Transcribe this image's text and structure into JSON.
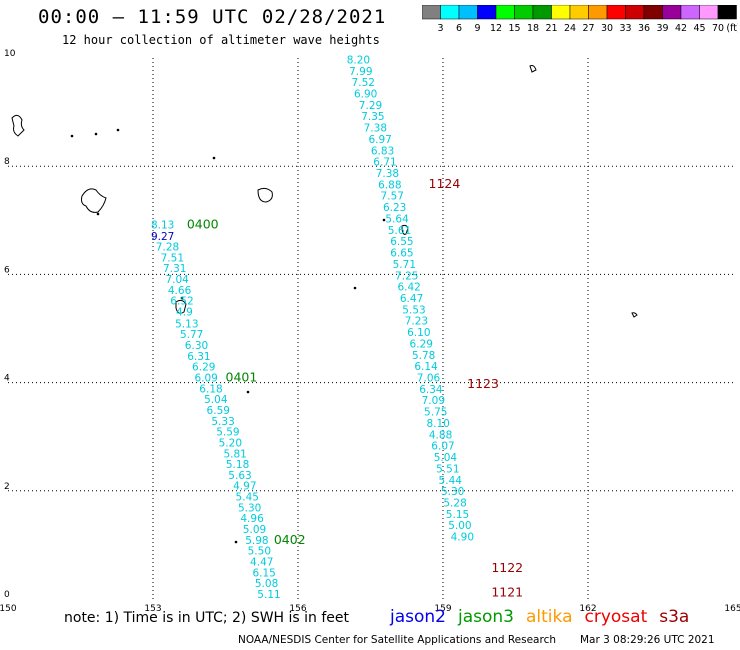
{
  "title": "00:00 – 11:59 UTC 02/28/2021",
  "subtitle": "12 hour collection of altimeter wave heights",
  "colorbar": {
    "colors": [
      "#808080",
      "#00ffff",
      "#00bfff",
      "#0000ff",
      "#00ff00",
      "#00cc00",
      "#009900",
      "#ffff00",
      "#ffcc00",
      "#ff9900",
      "#ff0000",
      "#cc0000",
      "#800000",
      "#990099",
      "#cc66ff",
      "#ff99ff",
      "#000000"
    ],
    "labels": [
      "3",
      "6",
      "9",
      "12",
      "15",
      "18",
      "21",
      "24",
      "27",
      "30",
      "33",
      "36",
      "39",
      "42",
      "45",
      "70"
    ],
    "unit": "(ft)"
  },
  "axes": {
    "x_ticks": [
      "150",
      "153",
      "156",
      "159",
      "162",
      "165"
    ],
    "y_ticks": [
      "0",
      "2",
      "4",
      "6",
      "8",
      "10"
    ]
  },
  "tracks": [
    {
      "color": "#00ccdd",
      "points": [
        {
          "lon": 153.2,
          "lat": 6.85,
          "v": "8.13"
        },
        {
          "lon": 153.2,
          "lat": 6.64,
          "v": "9.27",
          "color": "#0000cc"
        },
        {
          "lon": 153.3,
          "lat": 6.44,
          "v": "7.28"
        },
        {
          "lon": 153.4,
          "lat": 6.24,
          "v": "7.51"
        },
        {
          "lon": 153.45,
          "lat": 6.04,
          "v": "7.31"
        },
        {
          "lon": 153.5,
          "lat": 5.84,
          "v": "7.04"
        },
        {
          "lon": 153.55,
          "lat": 5.64,
          "v": "4.66"
        },
        {
          "lon": 153.6,
          "lat": 5.44,
          "v": "6.52"
        },
        {
          "lon": 153.65,
          "lat": 5.24,
          "v": "4.9"
        },
        {
          "lon": 153.7,
          "lat": 5.02,
          "v": "5.13"
        },
        {
          "lon": 153.8,
          "lat": 4.82,
          "v": "5.77"
        },
        {
          "lon": 153.9,
          "lat": 4.62,
          "v": "6.30"
        },
        {
          "lon": 153.95,
          "lat": 4.42,
          "v": "6.31"
        },
        {
          "lon": 154.05,
          "lat": 4.22,
          "v": "6.29"
        },
        {
          "lon": 154.1,
          "lat": 4.02,
          "v": "6.09"
        },
        {
          "lon": 154.2,
          "lat": 3.82,
          "v": "6.18"
        },
        {
          "lon": 154.3,
          "lat": 3.62,
          "v": "5.04"
        },
        {
          "lon": 154.35,
          "lat": 3.42,
          "v": "6.59"
        },
        {
          "lon": 154.45,
          "lat": 3.22,
          "v": "5.33"
        },
        {
          "lon": 154.55,
          "lat": 3.02,
          "v": "5.59"
        },
        {
          "lon": 154.6,
          "lat": 2.82,
          "v": "5.20"
        },
        {
          "lon": 154.7,
          "lat": 2.62,
          "v": "5.81"
        },
        {
          "lon": 154.75,
          "lat": 2.42,
          "v": "5.18"
        },
        {
          "lon": 154.8,
          "lat": 2.22,
          "v": "5.63"
        },
        {
          "lon": 154.9,
          "lat": 2.02,
          "v": "4.97"
        },
        {
          "lon": 154.95,
          "lat": 1.82,
          "v": "5.45"
        },
        {
          "lon": 155.0,
          "lat": 1.62,
          "v": "5.30"
        },
        {
          "lon": 155.05,
          "lat": 1.42,
          "v": "4.96"
        },
        {
          "lon": 155.1,
          "lat": 1.22,
          "v": "5.09"
        },
        {
          "lon": 155.15,
          "lat": 1.02,
          "v": "5.98"
        },
        {
          "lon": 155.2,
          "lat": 0.82,
          "v": "5.50"
        },
        {
          "lon": 155.25,
          "lat": 0.62,
          "v": "4.47"
        },
        {
          "lon": 155.3,
          "lat": 0.42,
          "v": "6.15"
        },
        {
          "lon": 155.35,
          "lat": 0.22,
          "v": "5.08"
        },
        {
          "lon": 155.4,
          "lat": 0.02,
          "v": "5.11"
        }
      ],
      "time_labels": [
        {
          "lon": 153.7,
          "lat": 6.85,
          "text": "0400",
          "color": "#008800"
        },
        {
          "lon": 154.5,
          "lat": 4.02,
          "text": "0401",
          "color": "#008800"
        },
        {
          "lon": 155.5,
          "lat": 1.02,
          "text": "0402",
          "color": "#008800"
        }
      ]
    },
    {
      "color": "#00ccdd",
      "points": [
        {
          "lon": 157.25,
          "lat": 9.9,
          "v": "8.20"
        },
        {
          "lon": 157.3,
          "lat": 9.69,
          "v": "7.99"
        },
        {
          "lon": 157.35,
          "lat": 9.48,
          "v": "7.52"
        },
        {
          "lon": 157.4,
          "lat": 9.27,
          "v": "6.90"
        },
        {
          "lon": 157.5,
          "lat": 9.06,
          "v": "7.29"
        },
        {
          "lon": 157.55,
          "lat": 8.85,
          "v": "7.35"
        },
        {
          "lon": 157.6,
          "lat": 8.64,
          "v": "7.38"
        },
        {
          "lon": 157.7,
          "lat": 8.43,
          "v": "6.97"
        },
        {
          "lon": 157.75,
          "lat": 8.22,
          "v": "6.83"
        },
        {
          "lon": 157.8,
          "lat": 8.01,
          "v": "6.71"
        },
        {
          "lon": 157.85,
          "lat": 7.8,
          "v": "7.38"
        },
        {
          "lon": 157.9,
          "lat": 7.59,
          "v": "6.88"
        },
        {
          "lon": 157.95,
          "lat": 7.38,
          "v": "7.57"
        },
        {
          "lon": 158.0,
          "lat": 7.17,
          "v": "6.23"
        },
        {
          "lon": 158.05,
          "lat": 6.96,
          "v": "5.64"
        },
        {
          "lon": 158.1,
          "lat": 6.75,
          "v": "5.61"
        },
        {
          "lon": 158.15,
          "lat": 6.54,
          "v": "6.55"
        },
        {
          "lon": 158.15,
          "lat": 6.33,
          "v": "6.65"
        },
        {
          "lon": 158.2,
          "lat": 6.12,
          "v": "5.71"
        },
        {
          "lon": 158.25,
          "lat": 5.91,
          "v": "7.25"
        },
        {
          "lon": 158.3,
          "lat": 5.7,
          "v": "6.42"
        },
        {
          "lon": 158.35,
          "lat": 5.49,
          "v": "6.47"
        },
        {
          "lon": 158.4,
          "lat": 5.28,
          "v": "5.53"
        },
        {
          "lon": 158.45,
          "lat": 5.07,
          "v": "7.23"
        },
        {
          "lon": 158.5,
          "lat": 4.86,
          "v": "6.10"
        },
        {
          "lon": 158.55,
          "lat": 4.65,
          "v": "6.29"
        },
        {
          "lon": 158.6,
          "lat": 4.44,
          "v": "5.78"
        },
        {
          "lon": 158.65,
          "lat": 4.23,
          "v": "6.14"
        },
        {
          "lon": 158.7,
          "lat": 4.02,
          "v": "7.06"
        },
        {
          "lon": 158.75,
          "lat": 3.81,
          "v": "6.34"
        },
        {
          "lon": 158.8,
          "lat": 3.6,
          "v": "7.09"
        },
        {
          "lon": 158.85,
          "lat": 3.39,
          "v": "5.75"
        },
        {
          "lon": 158.9,
          "lat": 3.18,
          "v": "8.10"
        },
        {
          "lon": 158.95,
          "lat": 2.97,
          "v": "4.88"
        },
        {
          "lon": 159.0,
          "lat": 2.76,
          "v": "6.07"
        },
        {
          "lon": 159.05,
          "lat": 2.55,
          "v": "5.04"
        },
        {
          "lon": 159.1,
          "lat": 2.34,
          "v": "5.51"
        },
        {
          "lon": 159.15,
          "lat": 2.13,
          "v": "5.44"
        },
        {
          "lon": 159.2,
          "lat": 1.92,
          "v": "5.30"
        },
        {
          "lon": 159.25,
          "lat": 1.71,
          "v": "5.28"
        },
        {
          "lon": 159.3,
          "lat": 1.5,
          "v": "5.15"
        },
        {
          "lon": 159.35,
          "lat": 1.29,
          "v": "5.00"
        },
        {
          "lon": 159.4,
          "lat": 1.08,
          "v": "4.90"
        }
      ],
      "time_labels": [
        {
          "lon": 158.7,
          "lat": 7.6,
          "text": "1124",
          "color": "#990000"
        },
        {
          "lon": 159.5,
          "lat": 3.9,
          "text": "1123",
          "color": "#990000"
        },
        {
          "lon": 160.0,
          "lat": 0.5,
          "text": "1122",
          "color": "#990000"
        },
        {
          "lon": 160.0,
          "lat": 0.05,
          "text": "1121",
          "color": "#990000"
        }
      ]
    }
  ],
  "footer": {
    "note": "note:  1) Time is in UTC;  2) SWH is in feet",
    "satellites": [
      {
        "name": "jason2",
        "color": "#0000ee"
      },
      {
        "name": "jason3",
        "color": "#009900"
      },
      {
        "name": "altika",
        "color": "#ff9900"
      },
      {
        "name": "cryosat",
        "color": "#ee0000"
      },
      {
        "name": "s3a",
        "color": "#990000"
      }
    ],
    "credit": "NOAA/NESDIS Center for Satellite Applications and Research",
    "timestamp": "Mar  3 08:29:26 UTC 2021"
  }
}
